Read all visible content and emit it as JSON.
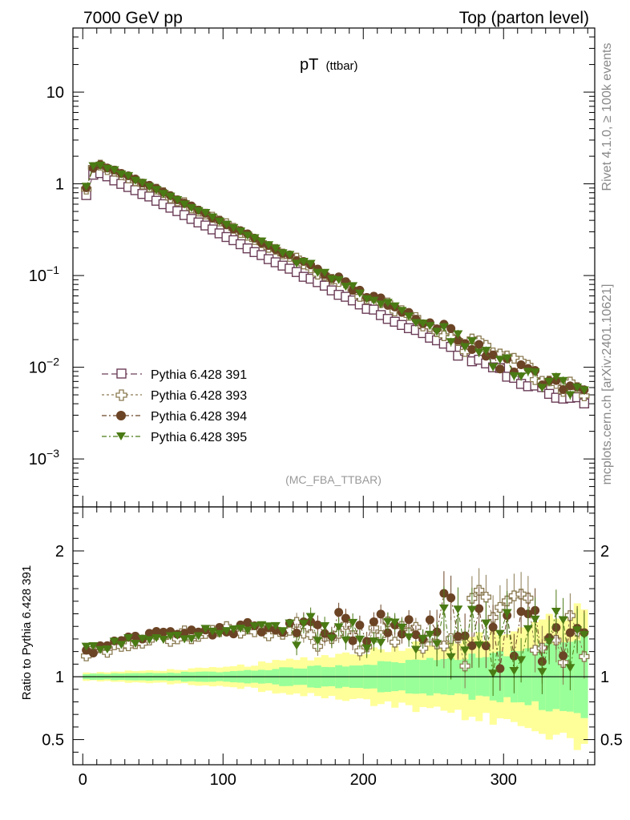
{
  "header": {
    "left": "7000 GeV pp",
    "right": "Top (parton level)"
  },
  "side_labels": {
    "upper": "Rivet 4.1.0, ≥ 100k events",
    "lower": "mcplots.cern.ch [arXiv:2401.10621]"
  },
  "chart_data": [
    {
      "type": "scatter",
      "panel": "main",
      "title": "pT",
      "title_sub": "(ttbar)",
      "analysis_tag": "(MC_FBA_TTBAR)",
      "xlabel": "",
      "ylabel": "",
      "xlim": [
        -7,
        365
      ],
      "yscale": "log",
      "ylim": [
        0.0003,
        50
      ],
      "y_ticks": [
        {
          "value": 0.001,
          "base": "10",
          "exp": "−3"
        },
        {
          "value": 0.01,
          "base": "10",
          "exp": "−2"
        },
        {
          "value": 0.1,
          "base": "10",
          "exp": "−1"
        },
        {
          "value": 1,
          "base": "1",
          "exp": ""
        },
        {
          "value": 10,
          "base": "10",
          "exp": ""
        }
      ],
      "legend_position": "lower-left",
      "series": [
        {
          "name": "Pythia 6.428 391",
          "color": "#6b3d57",
          "marker": "open-square"
        },
        {
          "name": "Pythia 6.428 393",
          "color": "#8a7a50",
          "marker": "open-cross"
        },
        {
          "name": "Pythia 6.428 394",
          "color": "#6b4425",
          "marker": "filled-circle"
        },
        {
          "name": "Pythia 6.428 395",
          "color": "#4a7a14",
          "marker": "filled-triangle-down"
        }
      ],
      "reference_curve": {
        "description": "Pythia 6.428 391 pT spectrum, piecewise log-linear",
        "x": [
          2.5,
          7.5,
          12.5,
          40,
          80,
          120,
          160,
          200,
          240,
          280,
          320,
          357
        ],
        "y": [
          0.75,
          1.25,
          1.3,
          0.82,
          0.4,
          0.19,
          0.095,
          0.047,
          0.024,
          0.012,
          0.0062,
          0.0042
        ]
      },
      "ratio_trend": {
        "series_393": {
          "x": [
            2.5,
            50,
            100,
            150,
            200,
            250,
            300,
            357
          ],
          "y": [
            1.18,
            1.3,
            1.36,
            1.34,
            1.33,
            1.35,
            1.4,
            1.4
          ]
        },
        "series_394": {
          "x": [
            2.5,
            50,
            100,
            150,
            200,
            250,
            300,
            357
          ],
          "y": [
            1.2,
            1.33,
            1.38,
            1.4,
            1.38,
            1.4,
            1.35,
            1.3
          ]
        },
        "series_395": {
          "x": [
            2.5,
            50,
            100,
            150,
            200,
            250,
            300,
            357
          ],
          "y": [
            1.2,
            1.32,
            1.36,
            1.38,
            1.32,
            1.3,
            1.25,
            1.3
          ]
        }
      }
    },
    {
      "type": "scatter",
      "panel": "ratio",
      "ylabel": "Ratio to Pythia 6.428 391",
      "xlim": [
        -7,
        365
      ],
      "ylim": [
        0.3,
        2.35
      ],
      "y_ticks": [
        0.5,
        1,
        2
      ],
      "x_ticks": [
        0,
        100,
        200,
        300
      ],
      "bands": {
        "green_halfwidth": {
          "x": [
            0,
            100,
            200,
            300,
            357
          ],
          "y": [
            0.02,
            0.04,
            0.1,
            0.18,
            0.3
          ]
        },
        "yellow_halfwidth": {
          "x": [
            0,
            100,
            200,
            300,
            357
          ],
          "y": [
            0.03,
            0.07,
            0.2,
            0.35,
            0.55
          ]
        }
      },
      "reference_line": 1
    }
  ]
}
